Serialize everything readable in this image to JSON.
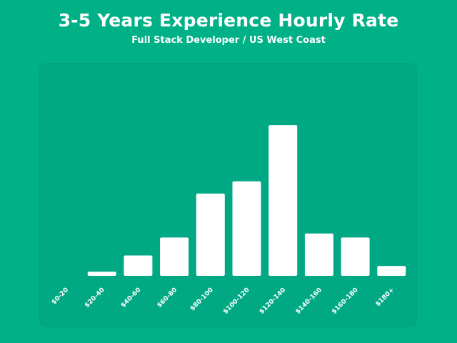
{
  "chart_data": {
    "type": "bar",
    "title": "3-5 Years Experience Hourly Rate",
    "subtitle": "Full Stack Developer / US West Coast",
    "xlabel": "",
    "ylabel": "",
    "categories": [
      "$0-20",
      "$20-40",
      "$40-60",
      "$60-80",
      "$80-100",
      "$100-120",
      "$120-140",
      "$140-160",
      "$160-180",
      "$180+"
    ],
    "values": [
      0,
      0.5,
      2.5,
      4.7,
      10.1,
      11.6,
      18.5,
      5.2,
      4.7,
      1.2
    ],
    "ylim": [
      0,
      20
    ],
    "grid": false,
    "legend": "none"
  },
  "colors": {
    "background": "#00B187",
    "panel": "#00A884",
    "bar": "#ffffff",
    "text": "#ffffff"
  }
}
